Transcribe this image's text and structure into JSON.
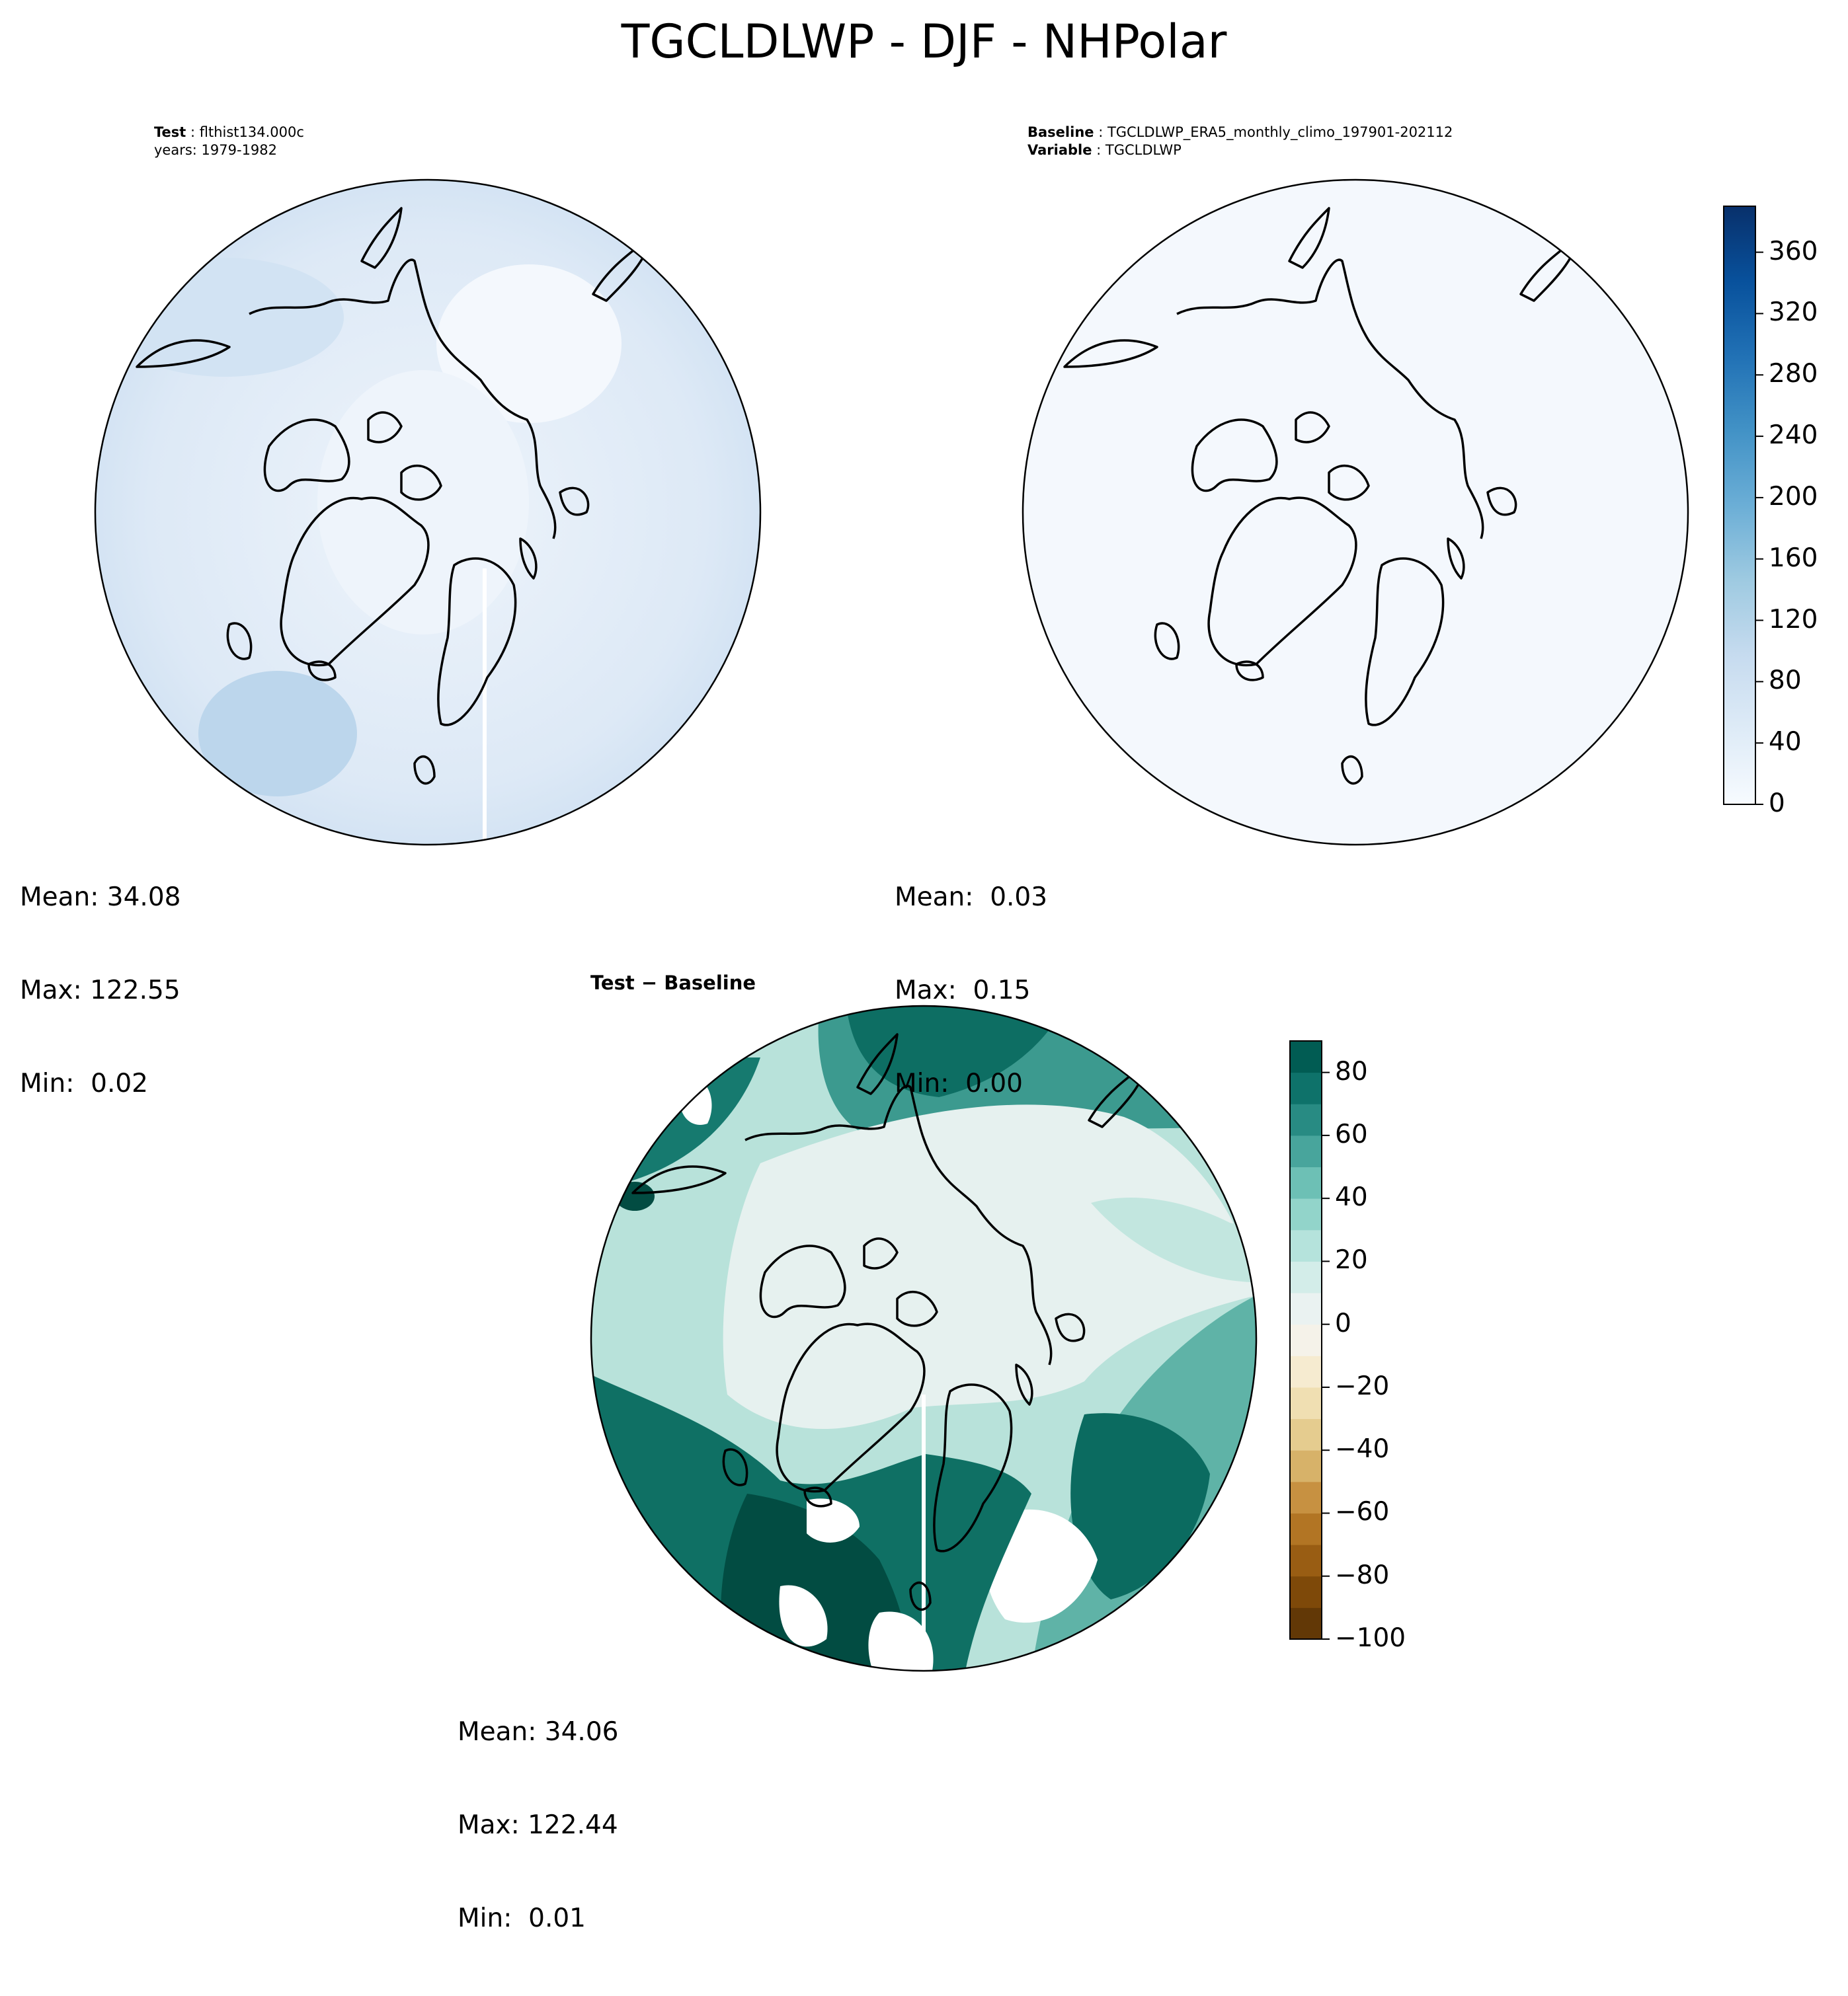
{
  "title": "TGCLDLWP - DJF - NHPolar",
  "panels": {
    "test": {
      "label_key": "Test",
      "label_value": "flthist134.000c",
      "years_line": "years: 1979-1982",
      "stats": {
        "mean": "Mean: 34.08",
        "max": "Max: 122.55",
        "min": "Min:  0.02"
      }
    },
    "baseline": {
      "label_key": "Baseline",
      "label_value": "TGCLDLWP_ERA5_monthly_climo_197901-202112",
      "var_key": "Variable",
      "var_value": "TGCLDLWP",
      "stats": {
        "mean": "Mean:  0.03",
        "max": "Max:  0.15",
        "min": "Min:  0.00"
      }
    },
    "difference": {
      "title": "Test − Baseline",
      "stats": {
        "mean": "Mean: 34.06",
        "max": "Max: 122.44",
        "min": "Min:  0.01"
      }
    }
  },
  "colorbars": {
    "blues": {
      "ticks": [
        "0",
        "40",
        "80",
        "120",
        "160",
        "200",
        "240",
        "280",
        "320",
        "360"
      ],
      "tick_values": [
        0,
        40,
        80,
        120,
        160,
        200,
        240,
        280,
        320,
        360
      ],
      "range": [
        0,
        390
      ],
      "colors": [
        "#f7fbff",
        "#deebf7",
        "#c6dbef",
        "#9ecae1",
        "#6baed6",
        "#4292c6",
        "#2171b5",
        "#08519c",
        "#08306b"
      ]
    },
    "diverging": {
      "ticks": [
        "80",
        "60",
        "40",
        "20",
        "0",
        "−20",
        "−40",
        "−60",
        "−80",
        "−100"
      ],
      "tick_values": [
        80,
        60,
        40,
        20,
        0,
        -20,
        -40,
        -60,
        -80,
        -100
      ],
      "range": [
        -100,
        90
      ],
      "colors": [
        "#543005",
        "#8c510a",
        "#bf812d",
        "#dfc27d",
        "#f6e8c3",
        "#f5f5f5",
        "#c7eae5",
        "#80cdc1",
        "#35978f",
        "#01665e",
        "#003c30"
      ]
    }
  },
  "colors": {
    "test_fill": "#e4eef8",
    "baseline_fill": "#f4f8fd",
    "diff_low": "#e6f1ef",
    "diff_mid": "#a8dcd3",
    "diff_high": "#2a8a80",
    "diff_max": "#024c42",
    "coast": "#000000"
  }
}
